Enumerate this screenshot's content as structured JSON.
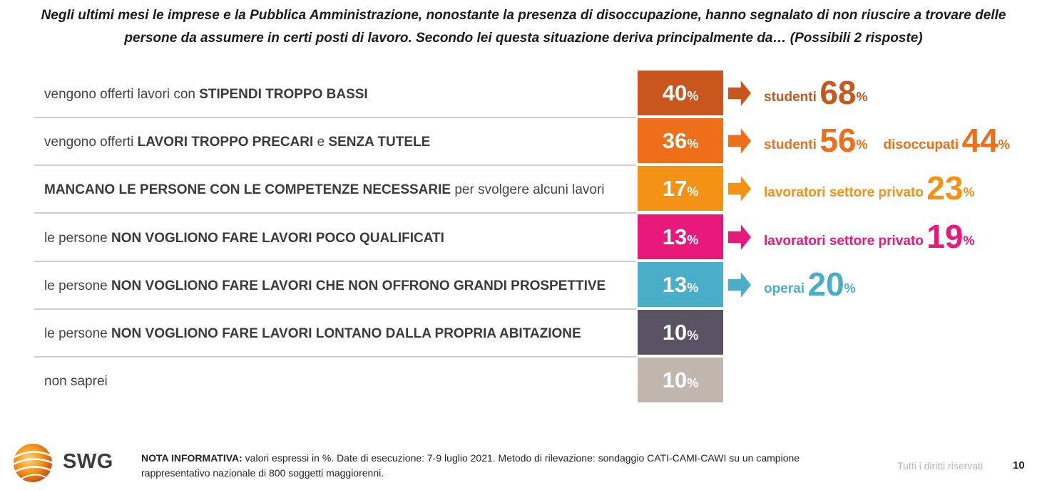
{
  "title": "Negli ultimi mesi le imprese e la Pubblica Amministrazione, nonostante la presenza di disoccupazione, hanno segnalato di non riuscire a trovare delle persone da assumere in certi posti di lavoro. Secondo lei questa situazione deriva principalmente da… (Possibili 2 risposte)",
  "chart_data": {
    "type": "bar",
    "orientation": "horizontal",
    "unit": "%",
    "categories": [
      "vengono offerti lavori con STIPENDI TROPPO BASSI",
      "vengono offerti LAVORI TROPPO PRECARI e SENZA TUTELE",
      "MANCANO LE PERSONE CON LE COMPETENZE NECESSARIE per svolgere alcuni lavori",
      "le persone NON VOGLIONO FARE LAVORI POCO QUALIFICATI",
      "le persone NON VOGLIONO FARE LAVORI CHE NON OFFRONO GRANDI PROSPETTIVE",
      "le persone NON VOGLIONO FARE LAVORI LONTANO DALLA PROPRIA ABITAZIONE",
      "non saprei"
    ],
    "values": [
      40,
      36,
      17,
      13,
      13,
      10,
      10
    ],
    "rows": [
      {
        "label_parts": [
          {
            "t": "vengono offerti lavori con ",
            "b": false
          },
          {
            "t": "STIPENDI TROPPO BASSI",
            "b": true
          }
        ],
        "value": "40",
        "pct": "%",
        "color": "#c8561d",
        "highlights": [
          {
            "group": "studenti",
            "value": "68",
            "pct": "%"
          }
        ]
      },
      {
        "label_parts": [
          {
            "t": "vengono offerti ",
            "b": false
          },
          {
            "t": "LAVORI TROPPO PRECARI",
            "b": true
          },
          {
            "t": " e ",
            "b": false
          },
          {
            "t": "SENZA TUTELE",
            "b": true
          }
        ],
        "value": "36",
        "pct": "%",
        "color": "#ee6e1a",
        "highlights": [
          {
            "group": "studenti",
            "value": "56",
            "pct": "%"
          },
          {
            "group": "disoccupati",
            "value": "44",
            "pct": "%"
          }
        ]
      },
      {
        "label_parts": [
          {
            "t": "MANCANO LE PERSONE CON LE COMPETENZE NECESSARIE",
            "b": true
          },
          {
            "t": " per svolgere alcuni lavori",
            "b": false
          }
        ],
        "value": "17",
        "pct": "%",
        "color": "#f39214",
        "highlights": [
          {
            "group": "lavoratori settore privato",
            "value": "23",
            "pct": "%"
          }
        ]
      },
      {
        "label_parts": [
          {
            "t": "le persone ",
            "b": false
          },
          {
            "t": "NON VOGLIONO FARE LAVORI POCO QUALIFICATI",
            "b": true
          }
        ],
        "value": "13",
        "pct": "%",
        "color": "#e8197b",
        "highlights": [
          {
            "group": "lavoratori settore privato",
            "value": "19",
            "pct": "%"
          }
        ]
      },
      {
        "label_parts": [
          {
            "t": "le persone ",
            "b": false
          },
          {
            "t": "NON VOGLIONO FARE LAVORI CHE NON OFFRONO GRANDI PROSPETTIVE",
            "b": true
          }
        ],
        "value": "13",
        "pct": "%",
        "color": "#4aaec9",
        "highlights": [
          {
            "group": "operai",
            "value": "20",
            "pct": "%"
          }
        ]
      },
      {
        "label_parts": [
          {
            "t": "le persone ",
            "b": false
          },
          {
            "t": "NON VOGLIONO FARE LAVORI LONTANO DALLA PROPRIA ABITAZIONE",
            "b": true
          }
        ],
        "value": "10",
        "pct": "%",
        "color": "#5b5363",
        "highlights": []
      },
      {
        "label_parts": [
          {
            "t": "non saprei",
            "b": false
          }
        ],
        "value": "10",
        "pct": "%",
        "color": "#c2b7ae",
        "highlights": []
      }
    ]
  },
  "footer": {
    "logo_text": "SWG",
    "note_label": "NOTA INFORMATIVA:",
    "note_text": " valori espressi in %. Date di esecuzione: 7-9 luglio 2021. Metodo di rilevazione: sondaggio CATI-CAMI-CAWI su un campione rappresentativo nazionale di 800 soggetti maggiorenni.",
    "rights": "Tutti i diritti riservati",
    "page_number": "10"
  }
}
